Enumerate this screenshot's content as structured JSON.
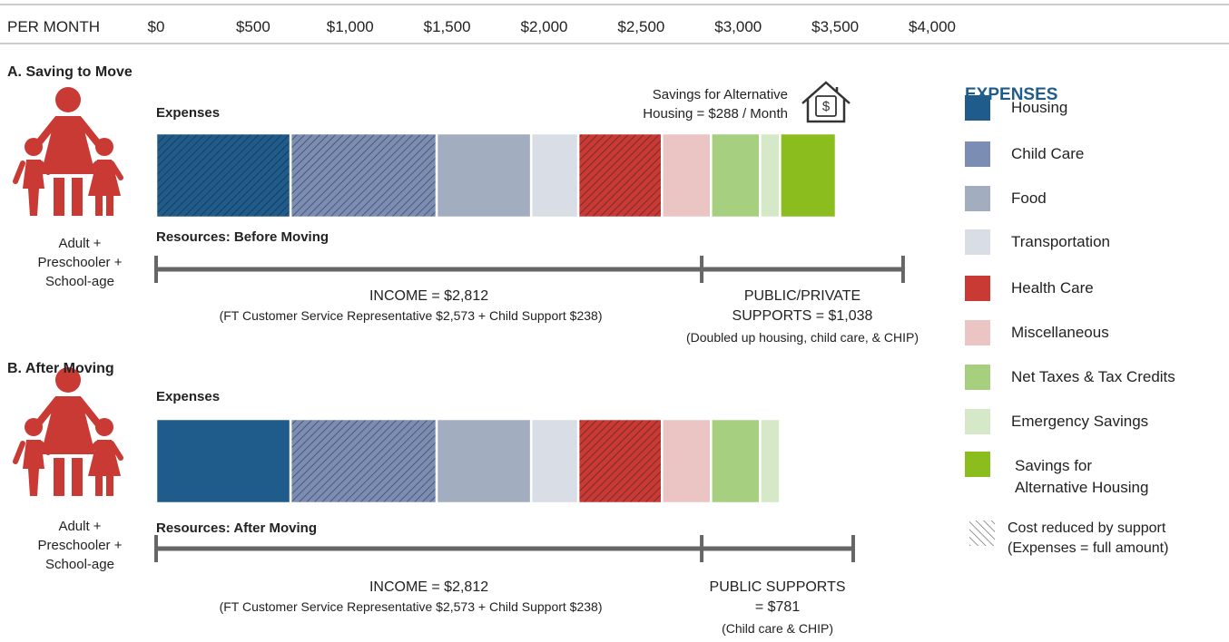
{
  "chart_data": {
    "type": "stacked-bar",
    "axis_label": "PER MONTH",
    "xlim": [
      0,
      4000
    ],
    "xticks": [
      {
        "value": 0,
        "label": "$0"
      },
      {
        "value": 500,
        "label": "$500"
      },
      {
        "value": 1000,
        "label": "$1,000"
      },
      {
        "value": 1500,
        "label": "$1,500"
      },
      {
        "value": 2000,
        "label": "$2,000"
      },
      {
        "value": 2500,
        "label": "$2,500"
      },
      {
        "value": 3000,
        "label": "$3,000"
      },
      {
        "value": 3500,
        "label": "$3,500"
      },
      {
        "value": 4000,
        "label": "$4,000"
      }
    ],
    "legend_title": "EXPENSES",
    "categories": [
      "Housing",
      "Child Care",
      "Food",
      "Transportation",
      "Health Care",
      "Miscellaneous",
      "Net Taxes & Tax Credits",
      "Emergency Savings",
      "Savings for Alternative Housing"
    ],
    "colors": [
      "#1f5c8b",
      "#7b8db3",
      "#a3adc0",
      "#d9dde5",
      "#c93a35",
      "#ebc4c4",
      "#a6cf80",
      "#d5e9c8",
      "#8cbd1f"
    ],
    "hatch_note": [
      "Cost reduced by support",
      "(Expenses = full amount)"
    ],
    "panels": [
      {
        "title": "A. Saving to Move",
        "household": "Adult + Preschooler + School-age",
        "expenses_label": "Expenses",
        "values": [
          693,
          753,
          487,
          243,
          431,
          253,
          253,
          103,
          288
        ],
        "hatched": [
          true,
          true,
          false,
          false,
          true,
          false,
          false,
          false,
          false
        ],
        "annotation": "Savings for Alternative Housing = $288 / Month",
        "resources_label": "Resources: Before Moving",
        "resources": [
          {
            "label": "INCOME = $2,812",
            "value": 2812,
            "note": "(FT Customer Service Representative $2,573 + Child Support $238)"
          },
          {
            "label": "PUBLIC/PRIVATE SUPPORTS = $1,038",
            "value": 1038,
            "note": "(Doubled up housing, child care, & CHIP)"
          }
        ]
      },
      {
        "title": "B. After Moving",
        "household": "Adult + Preschooler + School-age",
        "expenses_label": "Expenses",
        "values": [
          693,
          753,
          487,
          243,
          431,
          253,
          253,
          103,
          null
        ],
        "hatched": [
          false,
          true,
          false,
          false,
          true,
          false,
          false,
          false,
          false
        ],
        "resources_label": "Resources: After Moving",
        "resources": [
          {
            "label": "INCOME = $2,812",
            "value": 2812,
            "note": "(FT Customer Service Representative $2,573 + Child Support $238)"
          },
          {
            "label": "PUBLIC SUPPORTS = $781",
            "value": 781,
            "note": "(Child care & CHIP)"
          }
        ]
      }
    ]
  }
}
